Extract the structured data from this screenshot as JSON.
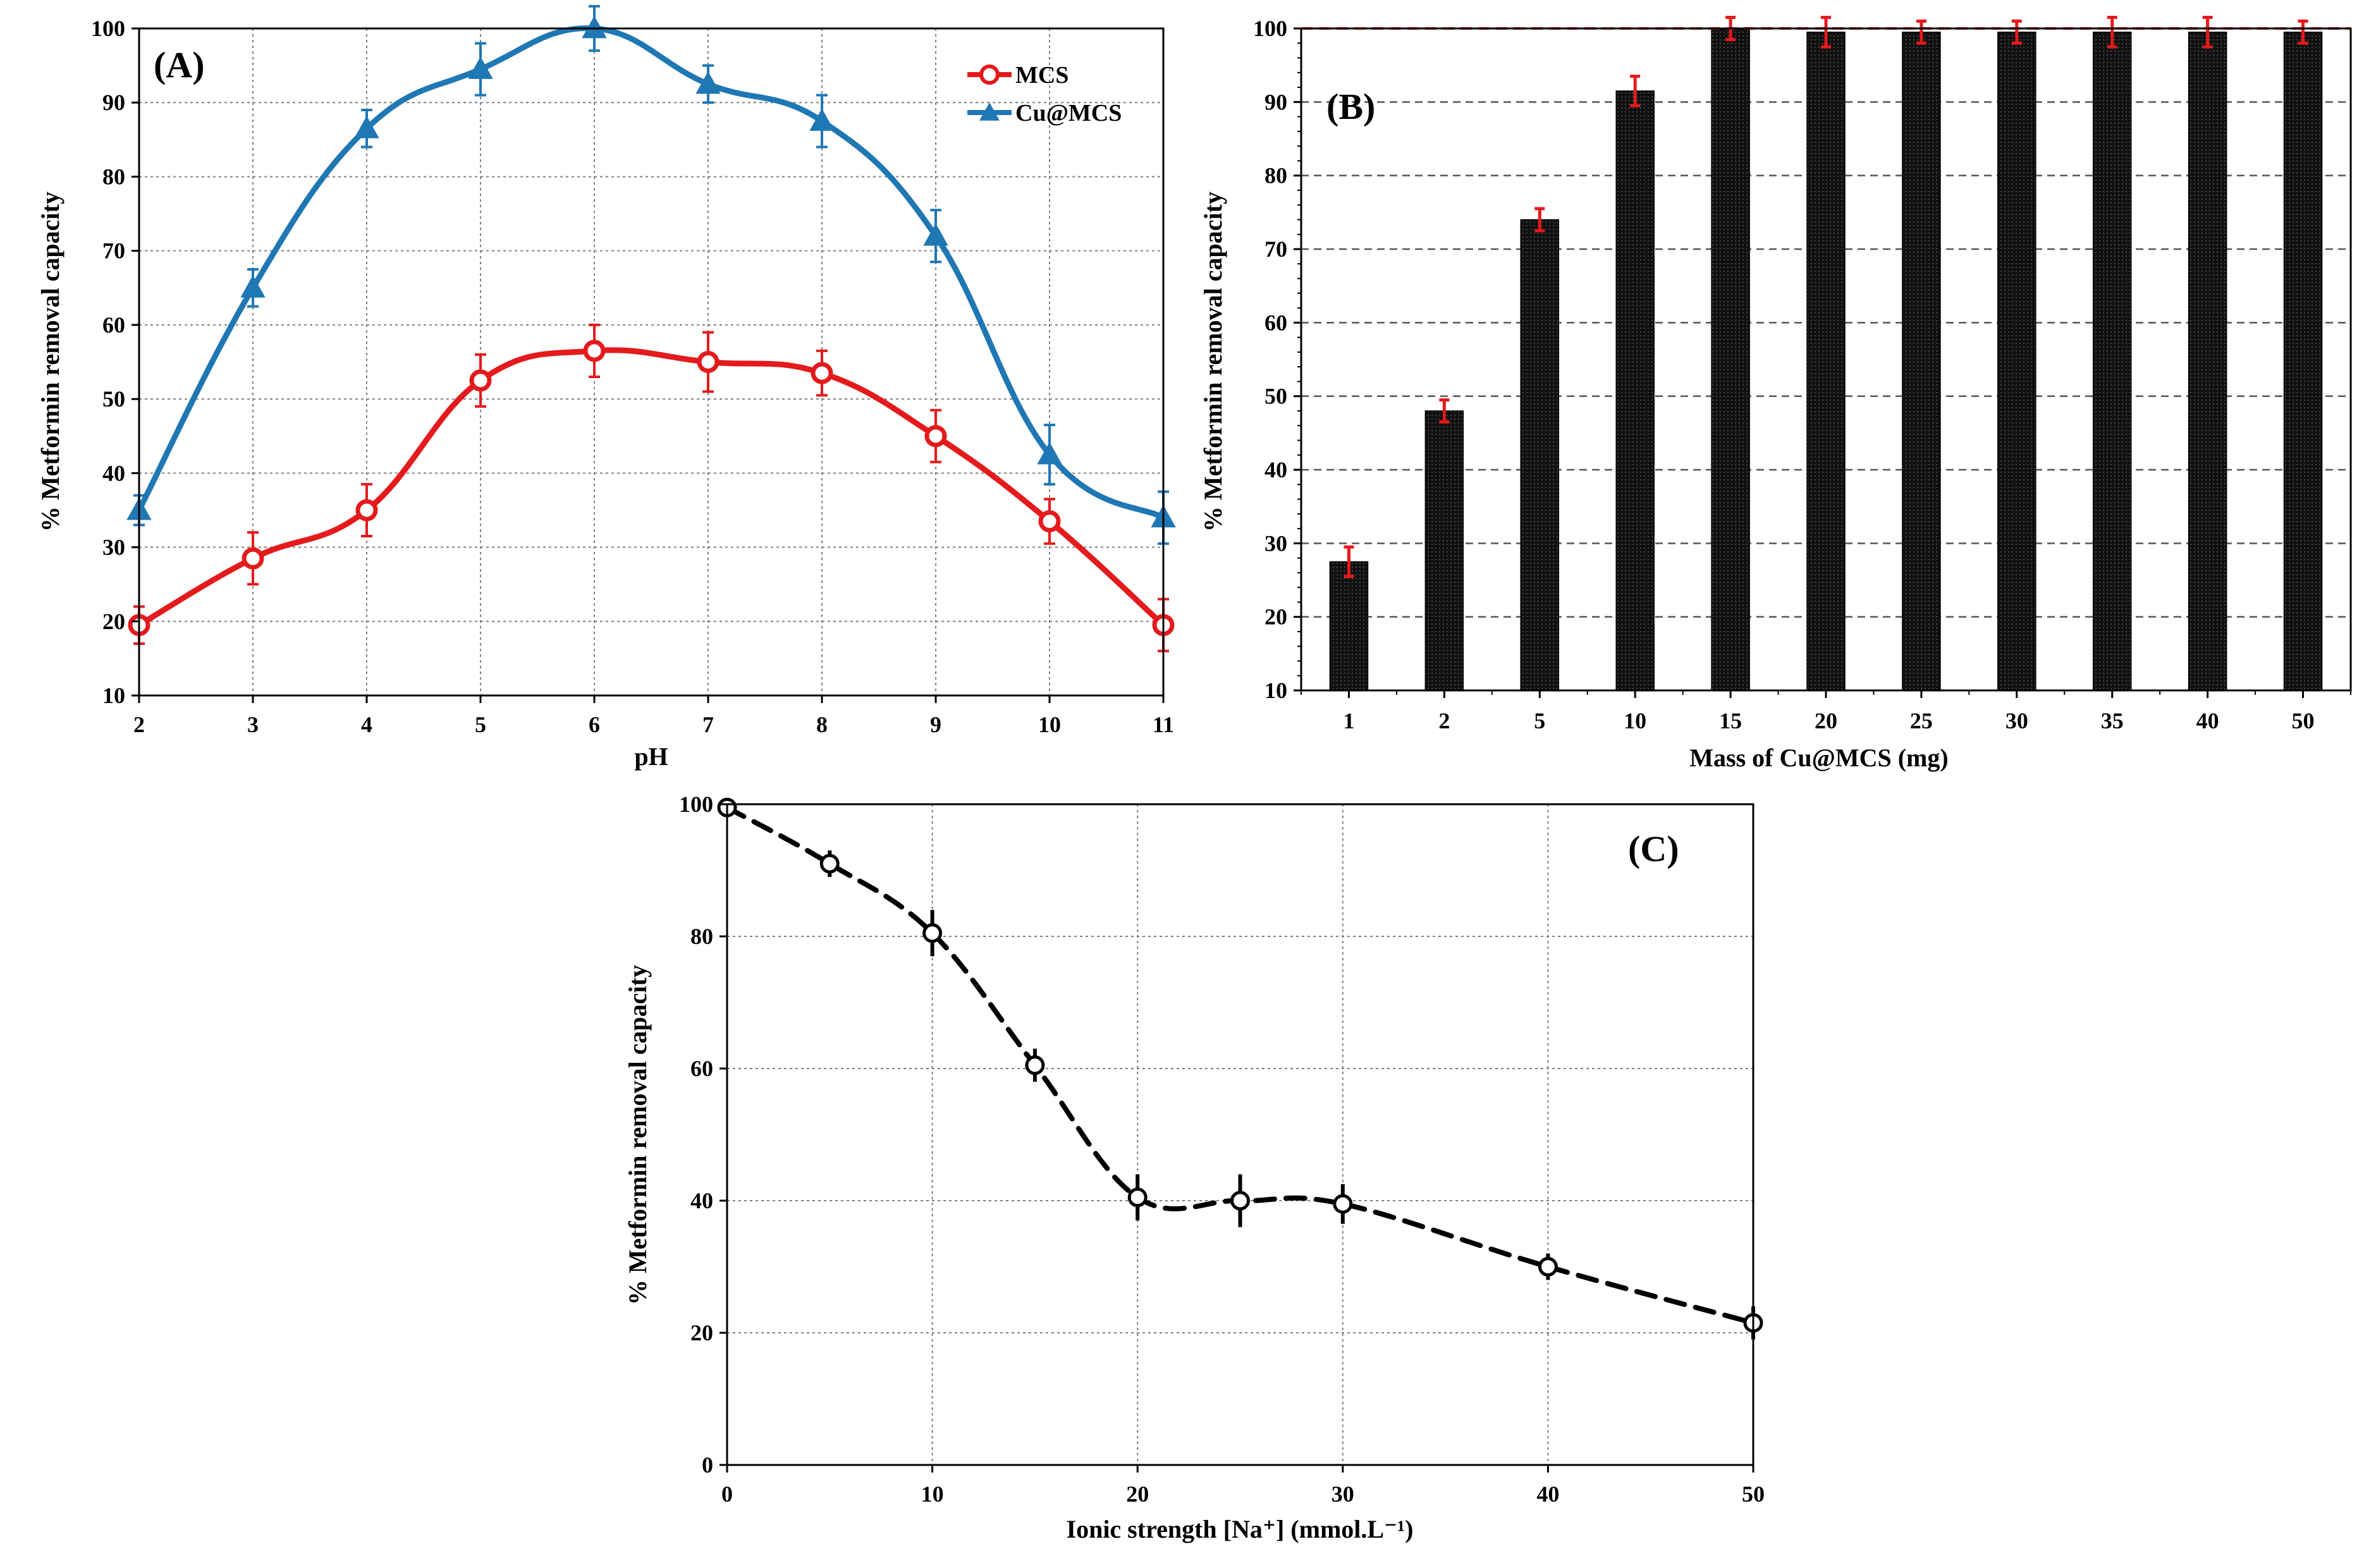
{
  "chart_data": [
    {
      "id": "A",
      "type": "line",
      "panel_label": "(A)",
      "xlabel": "pH",
      "ylabel": "% Metformin removal capacity",
      "xlim": [
        2,
        11
      ],
      "ylim": [
        10,
        100
      ],
      "xticks": [
        2,
        3,
        4,
        5,
        6,
        7,
        8,
        9,
        10,
        11
      ],
      "yticks": [
        10,
        20,
        30,
        40,
        50,
        60,
        70,
        80,
        90,
        100
      ],
      "grid": true,
      "legend_position": "top-right",
      "x": [
        2,
        3,
        4,
        5,
        6,
        7,
        8,
        9,
        10,
        11
      ],
      "series": [
        {
          "name": "MCS",
          "color": "#e41a1c",
          "marker": "circle",
          "values": [
            19.5,
            28.5,
            35,
            52.5,
            56.5,
            55,
            53.5,
            45,
            33.5,
            19.5
          ],
          "errors": [
            2.5,
            3.5,
            3.5,
            3.5,
            3.5,
            4,
            3,
            3.5,
            3,
            3.5
          ]
        },
        {
          "name": "Cu@MCS",
          "color": "#1f77b4",
          "marker": "triangle",
          "values": [
            35,
            65,
            86.5,
            94.5,
            100,
            92.5,
            87.5,
            72,
            42.5,
            34
          ],
          "errors": [
            2,
            2.5,
            2.5,
            3.5,
            3,
            2.5,
            3.5,
            3.5,
            4,
            3.5
          ]
        }
      ]
    },
    {
      "id": "B",
      "type": "bar",
      "panel_label": "(B)",
      "xlabel": "Mass of Cu@MCS (mg)",
      "ylabel": "% Metformin removal capacity",
      "ylim": [
        10,
        100
      ],
      "yticks": [
        10,
        20,
        30,
        40,
        50,
        60,
        70,
        80,
        90,
        100
      ],
      "grid": true,
      "bar_color": "#111111",
      "error_color": "#e41a1c",
      "reference_line": {
        "value": 100,
        "color": "#e41a1c"
      },
      "categories": [
        "1",
        "2",
        "5",
        "10",
        "15",
        "20",
        "25",
        "30",
        "35",
        "40",
        "50"
      ],
      "values": [
        27.5,
        48,
        74,
        91.5,
        100,
        99.5,
        99.5,
        99.5,
        99.5,
        99.5,
        99.5
      ],
      "errors": [
        2,
        1.5,
        1.5,
        2,
        1.5,
        2,
        1.5,
        1.5,
        2,
        2,
        1.5
      ]
    },
    {
      "id": "C",
      "type": "line",
      "panel_label": "(C)",
      "xlabel": "Ionic strength [Na⁺] (mmol.L⁻¹)",
      "ylabel": "% Metformin removal capacity",
      "xlim": [
        0,
        50
      ],
      "ylim": [
        0,
        100
      ],
      "xticks": [
        0,
        10,
        20,
        30,
        40,
        50
      ],
      "yticks": [
        0,
        20,
        40,
        60,
        80,
        100
      ],
      "grid": true,
      "line_style": "dashed",
      "color": "#000000",
      "x": [
        0,
        5,
        10,
        15,
        20,
        25,
        30,
        40,
        50
      ],
      "values": [
        99.5,
        91,
        80.5,
        60.5,
        40.5,
        40,
        39.5,
        30,
        21.5
      ],
      "errors": [
        1,
        2,
        3.5,
        2.5,
        3.5,
        4,
        3,
        2,
        2.5
      ]
    }
  ]
}
